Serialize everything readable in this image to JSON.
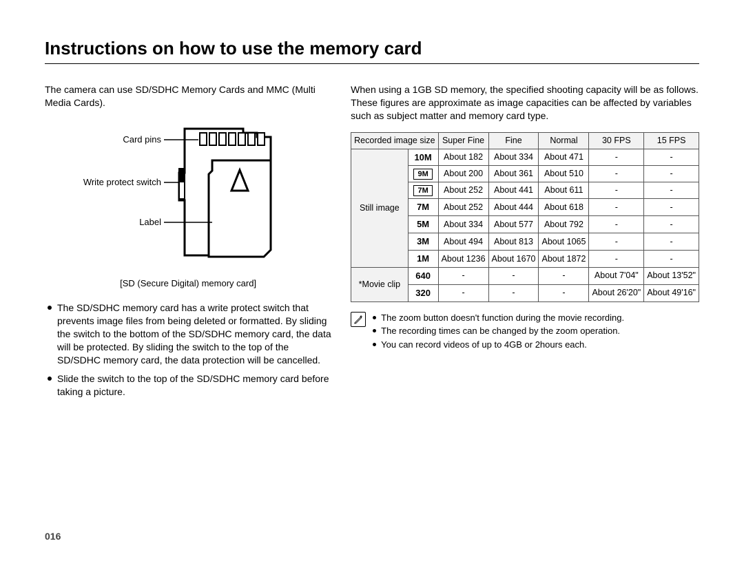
{
  "title": "Instructions on how to use the memory card",
  "page_number": "016",
  "left": {
    "intro": "The camera can use SD/SDHC Memory Cards and MMC (Multi Media Cards).",
    "diagram": {
      "card_pins": "Card pins",
      "write_protect": "Write protect switch",
      "label": "Label",
      "caption": "[SD (Secure Digital) memory card]"
    },
    "bullets": [
      "The SD/SDHC memory card has a write protect switch that prevents image files from being deleted or formatted. By sliding the switch to the bottom of the SD/SDHC memory card, the data will be protected. By sliding the switch to the top of the SD/SDHC memory card, the data protection will be cancelled.",
      "Slide the switch to the top of the SD/SDHC memory card before taking a picture."
    ]
  },
  "right": {
    "intro": "When using a 1GB SD memory, the specified shooting capacity will be as follows. These figures are approximate as image capacities can be affected by variables such as subject matter and memory card type.",
    "table": {
      "headers": {
        "recorded": "Recorded image size",
        "superfine": "Super Fine",
        "fine": "Fine",
        "normal": "Normal",
        "fps30": "30 FPS",
        "fps15": "15 FPS"
      },
      "groups": {
        "still": "Still image",
        "movie": "*Movie clip"
      },
      "rows": [
        {
          "group": "still",
          "size": "10M",
          "style": "text",
          "sf": "About 182",
          "f": "About 334",
          "n": "About 471",
          "r30": "-",
          "r15": "-"
        },
        {
          "group": "still",
          "size": "9M",
          "style": "box",
          "sf": "About 200",
          "f": "About 361",
          "n": "About 510",
          "r30": "-",
          "r15": "-"
        },
        {
          "group": "still",
          "size": "7M",
          "style": "box",
          "sf": "About 252",
          "f": "About 441",
          "n": "About 611",
          "r30": "-",
          "r15": "-"
        },
        {
          "group": "still",
          "size": "7M",
          "style": "text",
          "sf": "About 252",
          "f": "About 444",
          "n": "About 618",
          "r30": "-",
          "r15": "-"
        },
        {
          "group": "still",
          "size": "5M",
          "style": "text",
          "sf": "About 334",
          "f": "About 577",
          "n": "About 792",
          "r30": "-",
          "r15": "-"
        },
        {
          "group": "still",
          "size": "3M",
          "style": "text",
          "sf": "About 494",
          "f": "About 813",
          "n": "About 1065",
          "r30": "-",
          "r15": "-"
        },
        {
          "group": "still",
          "size": "1M",
          "style": "text",
          "sf": "About 1236",
          "f": "About 1670",
          "n": "About 1872",
          "r30": "-",
          "r15": "-"
        },
        {
          "group": "movie",
          "size": "640",
          "style": "bold",
          "sf": "-",
          "f": "-",
          "n": "-",
          "r30": "About 7'04\"",
          "r15": "About 13'52\""
        },
        {
          "group": "movie",
          "size": "320",
          "style": "bold",
          "sf": "-",
          "f": "-",
          "n": "-",
          "r30": "About 26'20\"",
          "r15": "About 49'16\""
        }
      ]
    },
    "notes": [
      "The zoom button doesn't function during the movie recording.",
      "The recording times can be changed by the zoom operation.",
      "You can record videos of up to 4GB or 2hours each."
    ]
  }
}
